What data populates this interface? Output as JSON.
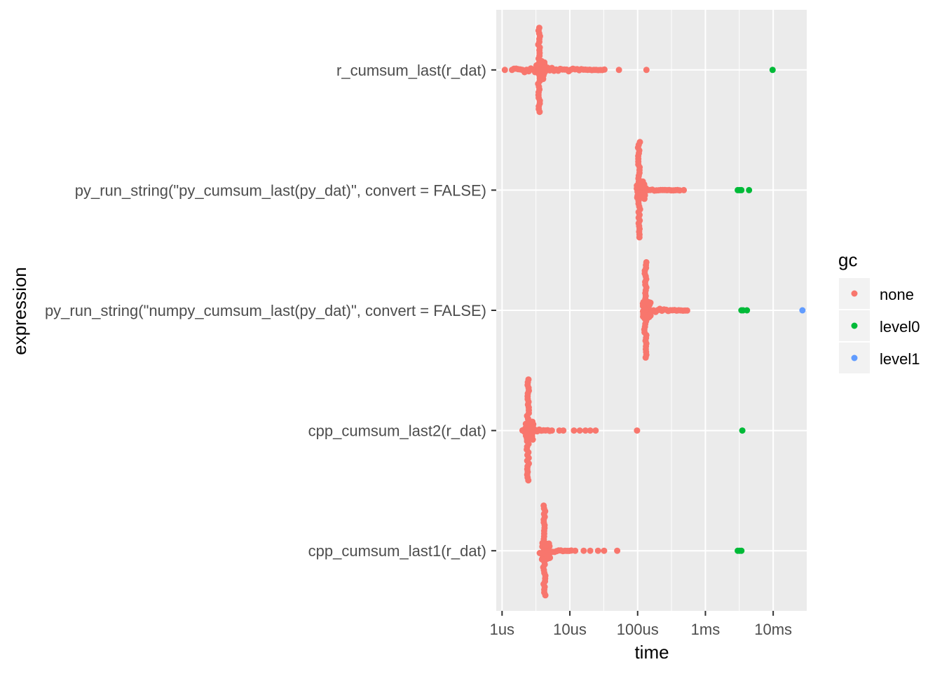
{
  "chart_data": {
    "type": "scatter",
    "title": "",
    "xlabel": "time",
    "ylabel": "expression",
    "x_scale": "log10",
    "x_unit": "seconds",
    "xlim": [
      8.2e-07,
      0.032
    ],
    "x_ticks": [
      {
        "value": 1e-06,
        "label": "1us"
      },
      {
        "value": 1e-05,
        "label": "10us"
      },
      {
        "value": 0.0001,
        "label": "100us"
      },
      {
        "value": 0.001,
        "label": "1ms"
      },
      {
        "value": 0.01,
        "label": "10ms"
      }
    ],
    "categories": [
      "r_cumsum_last(r_dat)",
      "py_run_string(\"py_cumsum_last(py_dat)\", convert = FALSE)",
      "py_run_string(\"numpy_cumsum_last(py_dat)\", convert = FALSE)",
      "cpp_cumsum_last2(r_dat)",
      "cpp_cumsum_last1(r_dat)"
    ],
    "legend": {
      "title": "gc",
      "position": "right",
      "entries": [
        {
          "label": "none",
          "color": "#F8766D"
        },
        {
          "label": "level0",
          "color": "#00BA38"
        },
        {
          "label": "level1",
          "color": "#619CFF"
        }
      ]
    },
    "grid": true,
    "series": [
      {
        "name": "none",
        "color": "#F8766D",
        "groups": [
          {
            "category": "r_cumsum_last(r_dat)",
            "mode_value": 3.5e-06,
            "spread": 0.7,
            "tail_start": 1.5e-06,
            "tail_end": 3.3e-05,
            "outliers": [
              1.1e-06,
              1.4e-06,
              5.3e-05,
              0.000135
            ]
          },
          {
            "category": "py_run_string(\"py_cumsum_last(py_dat)\", convert = FALSE)",
            "mode_value": 0.000105,
            "spread": 0.8,
            "tail_start": 0.0001,
            "tail_end": 0.00042,
            "outliers": [
              0.00048
            ]
          },
          {
            "category": "py_run_string(\"numpy_cumsum_last(py_dat)\", convert = FALSE)",
            "mode_value": 0.00013,
            "spread": 0.8,
            "tail_start": 0.00012,
            "tail_end": 0.00056,
            "outliers": []
          },
          {
            "category": "cpp_cumsum_last2(r_dat)",
            "mode_value": 2.4e-06,
            "spread": 0.85,
            "tail_start": 2e-06,
            "tail_end": 5.5e-06,
            "outliers": [
              7e-06,
              8e-06,
              1.15e-05,
              1.4e-05,
              1.7e-05,
              2e-05,
              2.4e-05,
              9.8e-05
            ]
          },
          {
            "category": "cpp_cumsum_last1(r_dat)",
            "mode_value": 4.2e-06,
            "spread": 0.75,
            "tail_start": 3.6e-06,
            "tail_end": 1.1e-05,
            "outliers": [
              1.2e-05,
              1.6e-05,
              2e-05,
              2.6e-05,
              3.2e-05,
              5e-05
            ]
          }
        ]
      },
      {
        "name": "level0",
        "color": "#00BA38",
        "groups": [
          {
            "category": "r_cumsum_last(r_dat)",
            "values": [
              0.0098
            ]
          },
          {
            "category": "py_run_string(\"py_cumsum_last(py_dat)\", convert = FALSE)",
            "values": [
              0.003,
              0.0032,
              0.0034,
              0.0044
            ]
          },
          {
            "category": "py_run_string(\"numpy_cumsum_last(py_dat)\", convert = FALSE)",
            "values": [
              0.0034,
              0.0036,
              0.0041
            ]
          },
          {
            "category": "cpp_cumsum_last2(r_dat)",
            "values": [
              0.0035
            ]
          },
          {
            "category": "cpp_cumsum_last1(r_dat)",
            "values": [
              0.003,
              0.0032,
              0.0034
            ]
          }
        ]
      },
      {
        "name": "level1",
        "color": "#619CFF",
        "groups": [
          {
            "category": "py_run_string(\"numpy_cumsum_last(py_dat)\", convert = FALSE)",
            "values": [
              0.027
            ]
          }
        ]
      }
    ]
  }
}
